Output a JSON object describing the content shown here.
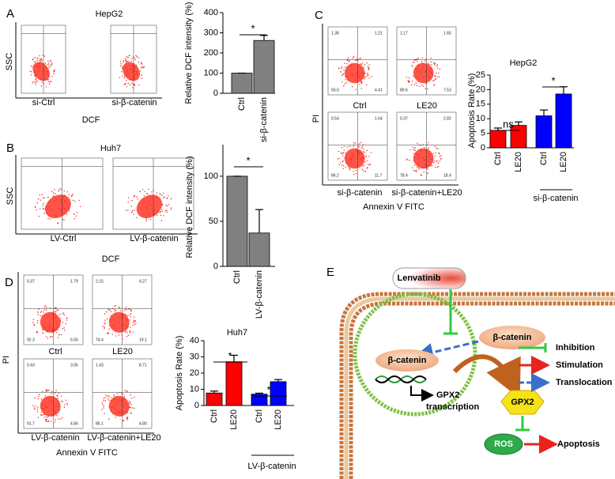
{
  "panel_labels": [
    "A",
    "B",
    "C",
    "D",
    "E"
  ],
  "flow_panels": [
    {
      "title": "HepG2",
      "y_label": "SSC",
      "x_label": "DCF",
      "plots": [
        {
          "label": "si-Ctrl"
        },
        {
          "label": "si-β-catenin"
        }
      ]
    },
    {
      "title": "Huh7",
      "y_label": "SSC",
      "x_label": "DCF",
      "plots": [
        {
          "label": "LV-Ctrl"
        },
        {
          "label": "LV-β-catenin"
        }
      ]
    },
    {
      "y_label": "PI",
      "x_label": "Annexin V FITC",
      "plots": [
        {
          "label": "Ctrl",
          "quadrants": [
            "1.38",
            "1.21",
            "93.0",
            "4.41"
          ]
        },
        {
          "label": "LE20",
          "quadrants": [
            "1.17",
            "1.65",
            "89.6",
            "7.53"
          ]
        },
        {
          "label": "si-β-catenin",
          "quadrants": [
            "0.54",
            "1.64",
            "86.2",
            "11.7"
          ]
        },
        {
          "label": "si-β-catenin+LE20",
          "quadrants": [
            "0.37",
            "2.82",
            "78.4",
            "18.4"
          ]
        }
      ]
    },
    {
      "y_label": "PI",
      "x_label": "Annexin V FITC",
      "plots": [
        {
          "label": "Ctrl",
          "quadrants": [
            "0.37",
            "1.79",
            "92.3",
            "5.56"
          ]
        },
        {
          "label": "LE20",
          "quadrants": [
            "2.15",
            "4.27",
            "74.4",
            "19.1"
          ]
        },
        {
          "label": "LV-β-catenin",
          "quadrants": [
            "0.43",
            "3.05",
            "91.7",
            "4.84"
          ]
        },
        {
          "label": "LV-β-catenin+LE20",
          "quadrants": [
            "1.43",
            "8.71",
            "85.1",
            "4.80"
          ]
        }
      ]
    }
  ],
  "chart_data": [
    {
      "type": "bar",
      "y_label": "Relative DCF intensity (%)",
      "categories": [
        "Ctrl",
        "si-β-catenin"
      ],
      "values": [
        100,
        262
      ],
      "errors": [
        0,
        25
      ],
      "colors": [
        "#808080",
        "#808080"
      ],
      "ylim": [
        0,
        400
      ],
      "yticks": [
        0,
        100,
        200,
        300,
        400
      ],
      "annotations": [
        "*"
      ]
    },
    {
      "type": "bar",
      "y_label": "Relative DCF intensity (%)",
      "categories": [
        "Ctrl",
        "LV-β-catenin"
      ],
      "values": [
        100,
        37
      ],
      "errors": [
        0,
        26
      ],
      "colors": [
        "#808080",
        "#808080"
      ],
      "ylim": [
        0,
        135
      ],
      "yticks": [
        0,
        50,
        100
      ],
      "annotations": [
        "*"
      ]
    },
    {
      "type": "bar",
      "title": "HepG2",
      "y_label": "Apoptosis Rate (%)",
      "categories": [
        "Ctrl",
        "LE20",
        "Ctrl",
        "LE20"
      ],
      "values": [
        6,
        7.7,
        11,
        18.5
      ],
      "errors": [
        0.8,
        1.2,
        2,
        2.5
      ],
      "colors": [
        "#ff0000",
        "#ff0000",
        "#0000ff",
        "#0000ff"
      ],
      "ylim": [
        0,
        25
      ],
      "yticks": [
        0,
        5,
        10,
        15,
        20,
        25
      ],
      "annotations": [
        "ns",
        "*"
      ],
      "group_label": "si-β-catenin"
    },
    {
      "type": "bar",
      "title": "Huh7",
      "y_label": "Apoptosis Rate (%)",
      "categories": [
        "Ctrl",
        "LE20",
        "Ctrl",
        "LE20"
      ],
      "values": [
        7.7,
        27,
        7,
        14.7
      ],
      "errors": [
        1.2,
        4,
        0.6,
        1.3
      ],
      "colors": [
        "#ff0000",
        "#ff0000",
        "#0000ff",
        "#0000ff"
      ],
      "ylim": [
        0,
        40
      ],
      "yticks": [
        0,
        10,
        20,
        30,
        40
      ],
      "annotations": [
        "*",
        "*"
      ],
      "group_label": "LV-β-catenin"
    }
  ],
  "diagram": {
    "drug": "Lenvatinib",
    "cytoplasm_protein": "β-catenin",
    "nuclear_protein": "β-catenin",
    "gene": "GPX2",
    "transcription": "transcription",
    "enzyme": "GPX2",
    "ros": "ROS",
    "outcome": "Apoptosis",
    "legend": [
      "Inhibition",
      "Stimulation",
      "Translocation"
    ]
  }
}
